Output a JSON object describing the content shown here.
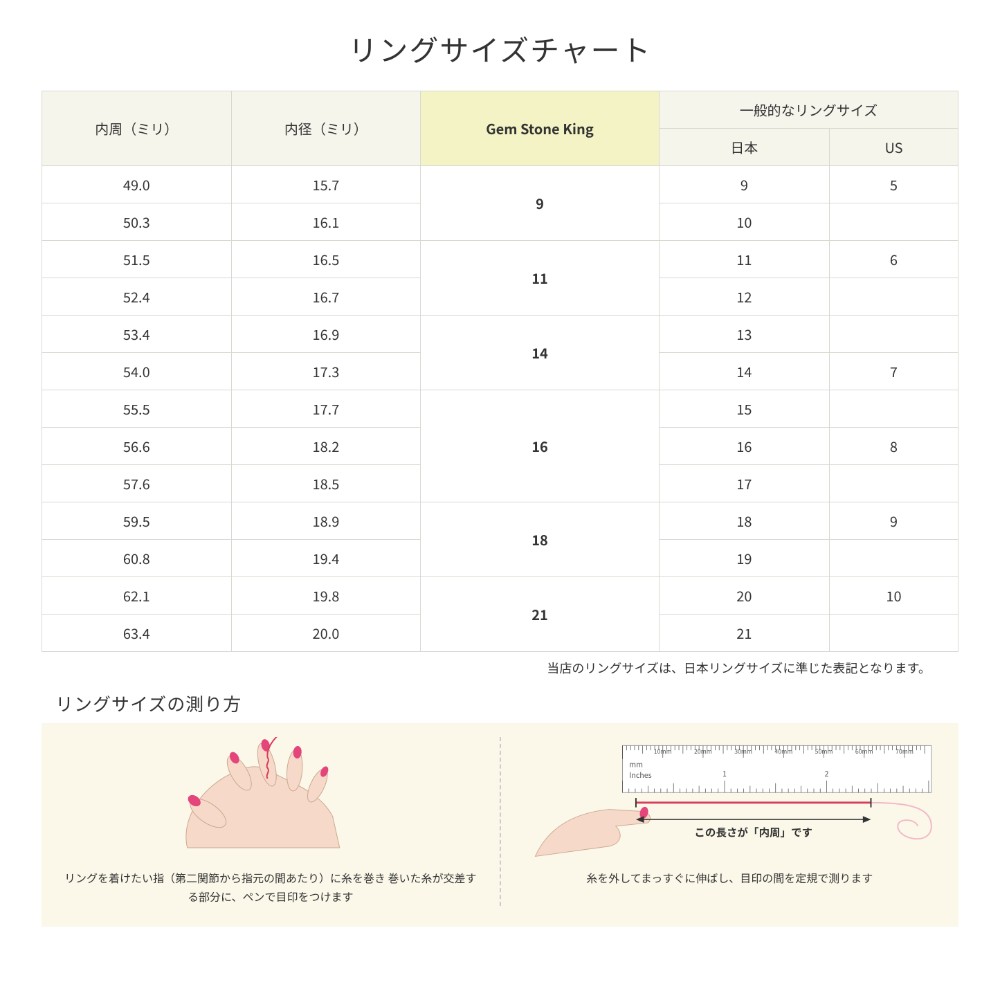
{
  "title": "リングサイズチャート",
  "headers": {
    "circumference": "内周（ミリ）",
    "diameter": "内径（ミリ）",
    "brand": "Gem Stone King",
    "common_group": "一般的なリングサイズ",
    "japan": "日本",
    "us": "US"
  },
  "rows": [
    {
      "circ": "49.0",
      "dia": "15.7",
      "gsk": "9",
      "gsk_span": 2,
      "jp": "9",
      "us": "5"
    },
    {
      "circ": "50.3",
      "dia": "16.1",
      "gsk": null,
      "jp": "10",
      "us": ""
    },
    {
      "circ": "51.5",
      "dia": "16.5",
      "gsk": "11",
      "gsk_span": 2,
      "jp": "11",
      "us": "6"
    },
    {
      "circ": "52.4",
      "dia": "16.7",
      "gsk": null,
      "jp": "12",
      "us": ""
    },
    {
      "circ": "53.4",
      "dia": "16.9",
      "gsk": "14",
      "gsk_span": 2,
      "jp": "13",
      "us": ""
    },
    {
      "circ": "54.0",
      "dia": "17.3",
      "gsk": null,
      "jp": "14",
      "us": "7"
    },
    {
      "circ": "55.5",
      "dia": "17.7",
      "gsk": "16",
      "gsk_span": 3,
      "jp": "15",
      "us": ""
    },
    {
      "circ": "56.6",
      "dia": "18.2",
      "gsk": null,
      "jp": "16",
      "us": "8"
    },
    {
      "circ": "57.6",
      "dia": "18.5",
      "gsk": null,
      "jp": "17",
      "us": ""
    },
    {
      "circ": "59.5",
      "dia": "18.9",
      "gsk": "18",
      "gsk_span": 2,
      "jp": "18",
      "us": "9"
    },
    {
      "circ": "60.8",
      "dia": "19.4",
      "gsk": null,
      "jp": "19",
      "us": ""
    },
    {
      "circ": "62.1",
      "dia": "19.8",
      "gsk": "21",
      "gsk_span": 2,
      "jp": "20",
      "us": "10"
    },
    {
      "circ": "63.4",
      "dia": "20.0",
      "gsk": null,
      "jp": "21",
      "us": ""
    }
  ],
  "note": "当店のリングサイズは、日本リングサイズに準じた表記となります。",
  "howto": {
    "heading": "リングサイズの測り方",
    "left_text": "リングを着けたい指（第二関節から指元の間あたり）に糸を巻き\n巻いた糸が交差する部分に、ペンで目印をつけます",
    "right_text": "糸を外してまっすぐに伸ばし、目印の間を定規で測ります",
    "ruler_caption": "この長さが「内周」です",
    "ruler_mm": "mm",
    "ruler_inches": "Inches",
    "ruler_ticks_mm": [
      "10mm",
      "20mm",
      "30mm",
      "40mm",
      "50mm",
      "60mm",
      "70mm"
    ],
    "ruler_ticks_in": [
      "1",
      "2"
    ]
  },
  "colors": {
    "header_bg": "#f5f5ec",
    "highlight_bg": "#f3f3c5",
    "border": "#d8d8d0",
    "howto_bg": "#fbf8ea",
    "skin": "#f6d9c9",
    "nail": "#e4457a",
    "thread": "#d93b5a"
  }
}
